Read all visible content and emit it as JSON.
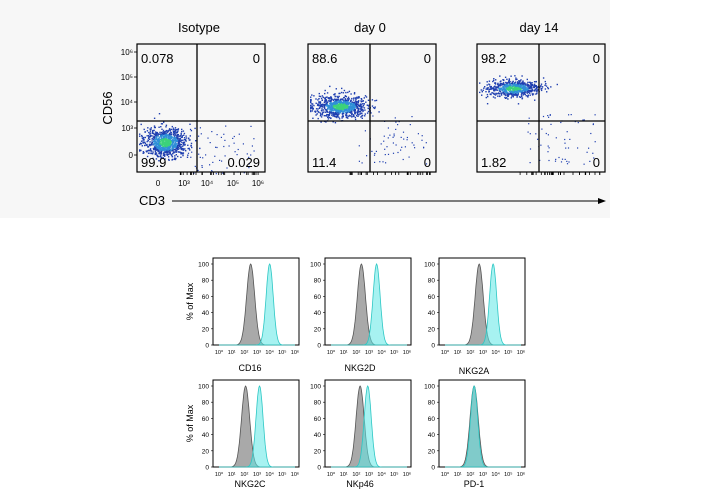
{
  "dotplots": {
    "y_label": "CD56",
    "x_label": "CD3",
    "panels": [
      {
        "title": "Isotype",
        "quadrants": {
          "ul": "0.078",
          "ur": "0",
          "ll": "99.9",
          "lr": "0.029"
        }
      },
      {
        "title": "day 0",
        "quadrants": {
          "ul": "88.6",
          "ur": "0",
          "ll": "11.4",
          "lr": "0"
        }
      },
      {
        "title": "day 14",
        "quadrants": {
          "ul": "98.2",
          "ur": "0",
          "ll": "1.82",
          "lr": "0"
        }
      }
    ],
    "y_ticks": [
      "10⁶",
      "10⁵",
      "10⁴",
      "10³",
      "0"
    ],
    "x_ticks": [
      "0",
      "10³",
      "10⁴",
      "10⁵",
      "10⁶"
    ]
  },
  "chart_data": [
    {
      "type": "histogram",
      "ylabel": "% of Max",
      "y_ticks": [
        "0",
        "20",
        "40",
        "60",
        "80",
        "100"
      ],
      "x_ticks": [
        "10⁰",
        "10¹",
        "10²",
        "10³",
        "10⁴",
        "10⁵",
        "10⁶"
      ],
      "colors": {
        "control": "#9a9a9a",
        "sample": "#5fe8e6"
      },
      "panels": [
        {
          "marker": "CD16",
          "control_peak_log": 2.5,
          "sample_peak_log": 4.0
        },
        {
          "marker": "NKG2D",
          "control_peak_log": 2.4,
          "sample_peak_log": 3.6
        },
        {
          "marker": "NKG2A",
          "control_peak_log": 2.7,
          "sample_peak_log": 3.8
        },
        {
          "marker": "NKG2C",
          "control_peak_log": 2.1,
          "sample_peak_log": 3.2
        },
        {
          "marker": "NKp46",
          "control_peak_log": 2.3,
          "sample_peak_log": 2.9
        },
        {
          "marker": "PD-1",
          "control_peak_log": 2.3,
          "sample_peak_log": 2.3
        }
      ]
    }
  ]
}
